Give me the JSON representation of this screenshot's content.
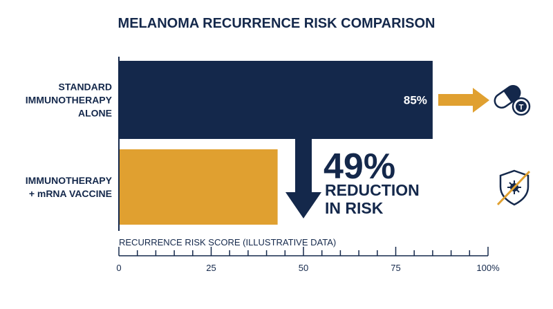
{
  "chart_data": {
    "type": "bar",
    "orientation": "horizontal",
    "title": "MELANOMA RECURRENCE RISK COMPARISON",
    "xlabel": "RECURRENCE RISK SCORE (ILLUSTRATIVE DATA)",
    "xlim": [
      0,
      100
    ],
    "x_ticks": [
      0,
      25,
      50,
      75,
      100
    ],
    "x_tick_labels": [
      "0",
      "25",
      "50",
      "75",
      "100%"
    ],
    "categories": [
      {
        "label_lines": [
          "STANDARD",
          "IMMUNOTHERAPY",
          "ALONE"
        ],
        "icon": "pill-capsule-icon"
      },
      {
        "label_lines": [
          "IMMUNOTHERAPY",
          "+ mRNA VACCINE"
        ],
        "icon": "virus-shield-icon"
      }
    ],
    "values": [
      85,
      43
    ],
    "data_labels": [
      "85%",
      ""
    ],
    "colors": {
      "bar1": "#14284b",
      "bar2": "#e0a030",
      "accent": "#e0a030",
      "text": "#14284b"
    },
    "annotation": {
      "value": "49%",
      "lines": [
        "REDUCTION",
        "IN RISK"
      ]
    },
    "grid": false
  }
}
